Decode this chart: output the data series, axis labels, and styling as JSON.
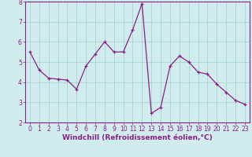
{
  "x": [
    0,
    1,
    2,
    3,
    4,
    5,
    6,
    7,
    8,
    9,
    10,
    11,
    12,
    13,
    14,
    15,
    16,
    17,
    18,
    19,
    20,
    21,
    22,
    23
  ],
  "y": [
    5.5,
    4.6,
    4.2,
    4.15,
    4.1,
    3.65,
    4.8,
    5.4,
    6.0,
    5.5,
    5.5,
    6.6,
    7.9,
    2.45,
    2.75,
    4.8,
    5.3,
    5.0,
    4.5,
    4.4,
    3.9,
    3.5,
    3.1,
    2.9
  ],
  "color": "#882288",
  "bg_color": "#d0ecec",
  "grid_color": "#a8d4d4",
  "xlabel": "Windchill (Refroidissement éolien,°C)",
  "ylim": [
    2,
    8
  ],
  "xlim": [
    -0.5,
    23.5
  ],
  "yticks": [
    2,
    3,
    4,
    5,
    6,
    7,
    8
  ],
  "xticks": [
    0,
    1,
    2,
    3,
    4,
    5,
    6,
    7,
    8,
    9,
    10,
    11,
    12,
    13,
    14,
    15,
    16,
    17,
    18,
    19,
    20,
    21,
    22,
    23
  ],
  "tick_fontsize": 5.5,
  "xlabel_fontsize": 6.5
}
